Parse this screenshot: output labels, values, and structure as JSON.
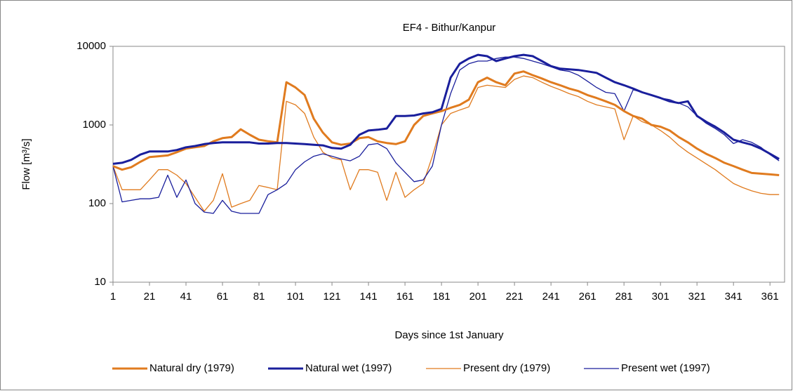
{
  "chart_data": {
    "type": "line",
    "title": "EF4 - Bithur/Kanpur",
    "x_label": "Days since 1st January",
    "y_label": "Flow [m³/s]",
    "log_scale_y": true,
    "grid": false,
    "legend": "bottom",
    "xlim": [
      1,
      369
    ],
    "xticks": [
      1,
      21,
      41,
      61,
      81,
      101,
      121,
      141,
      161,
      181,
      201,
      221,
      241,
      261,
      281,
      301,
      321,
      341,
      361
    ],
    "ylim": [
      10,
      10000
    ],
    "yticks": [
      10,
      100,
      1000,
      10000
    ],
    "x": [
      1,
      6,
      11,
      16,
      21,
      26,
      31,
      36,
      41,
      46,
      51,
      56,
      61,
      66,
      71,
      76,
      81,
      86,
      91,
      96,
      101,
      106,
      111,
      116,
      121,
      126,
      131,
      136,
      141,
      146,
      151,
      156,
      161,
      166,
      171,
      176,
      181,
      186,
      191,
      196,
      201,
      206,
      211,
      216,
      221,
      226,
      231,
      236,
      241,
      246,
      251,
      256,
      261,
      266,
      271,
      276,
      281,
      286,
      291,
      296,
      301,
      306,
      311,
      316,
      321,
      326,
      331,
      336,
      341,
      346,
      351,
      356,
      361,
      366
    ],
    "series": [
      {
        "name": "Natural dry (1979)",
        "color": "#e07b1f",
        "linewidth": 3,
        "values": [
          300,
          270,
          290,
          340,
          390,
          400,
          410,
          450,
          500,
          520,
          540,
          620,
          680,
          700,
          880,
          750,
          650,
          620,
          600,
          3500,
          3000,
          2400,
          1200,
          800,
          600,
          560,
          580,
          680,
          700,
          620,
          590,
          570,
          620,
          1000,
          1300,
          1400,
          1500,
          1650,
          1800,
          2100,
          3500,
          4000,
          3500,
          3200,
          4500,
          4800,
          4300,
          3900,
          3500,
          3200,
          2900,
          2700,
          2400,
          2200,
          2000,
          1800,
          1500,
          1300,
          1200,
          1000,
          950,
          850,
          700,
          600,
          500,
          430,
          380,
          330,
          300,
          270,
          245,
          240,
          235,
          230
        ]
      },
      {
        "name": "Natural wet (1997)",
        "color": "#1a1f9c",
        "linewidth": 3,
        "values": [
          320,
          330,
          360,
          420,
          460,
          460,
          460,
          480,
          520,
          540,
          570,
          590,
          600,
          600,
          600,
          600,
          580,
          580,
          590,
          590,
          580,
          570,
          560,
          550,
          510,
          500,
          560,
          750,
          850,
          870,
          900,
          1300,
          1300,
          1320,
          1400,
          1450,
          1600,
          4000,
          6000,
          7000,
          7800,
          7500,
          6500,
          7000,
          7500,
          7800,
          7500,
          6500,
          5600,
          5200,
          5100,
          5000,
          4800,
          4600,
          4000,
          3500,
          3200,
          2900,
          2600,
          2400,
          2200,
          2000,
          1900,
          2000,
          1300,
          1100,
          950,
          800,
          650,
          600,
          560,
          500,
          430,
          370
        ]
      },
      {
        "name": "Present dry (1979)",
        "color": "#e07b1f",
        "linewidth": 1.3,
        "values": [
          300,
          150,
          150,
          150,
          200,
          270,
          270,
          230,
          180,
          120,
          80,
          110,
          240,
          90,
          100,
          110,
          170,
          160,
          150,
          2000,
          1800,
          1400,
          700,
          450,
          380,
          360,
          150,
          270,
          270,
          250,
          110,
          250,
          120,
          150,
          180,
          400,
          1000,
          1400,
          1550,
          1700,
          3000,
          3200,
          3100,
          3000,
          3800,
          4200,
          4000,
          3500,
          3100,
          2800,
          2500,
          2300,
          2000,
          1800,
          1700,
          1600,
          650,
          1300,
          1100,
          1000,
          850,
          700,
          550,
          450,
          380,
          320,
          270,
          220,
          180,
          160,
          145,
          135,
          130,
          130
        ]
      },
      {
        "name": "Present wet (1997)",
        "color": "#1a1f9c",
        "linewidth": 1.3,
        "values": [
          300,
          105,
          110,
          115,
          115,
          120,
          230,
          120,
          200,
          100,
          78,
          75,
          110,
          80,
          75,
          75,
          75,
          130,
          150,
          180,
          270,
          340,
          400,
          430,
          400,
          370,
          350,
          400,
          560,
          580,
          500,
          330,
          250,
          190,
          200,
          300,
          1000,
          2500,
          5000,
          6000,
          6500,
          6500,
          7000,
          7300,
          7300,
          7000,
          6500,
          6000,
          5500,
          5000,
          4800,
          4300,
          3600,
          3000,
          2600,
          2500,
          1500,
          2800,
          2600,
          2400,
          2200,
          2100,
          1900,
          1700,
          1300,
          1050,
          900,
          750,
          580,
          650,
          600,
          520,
          420,
          350
        ]
      }
    ]
  }
}
